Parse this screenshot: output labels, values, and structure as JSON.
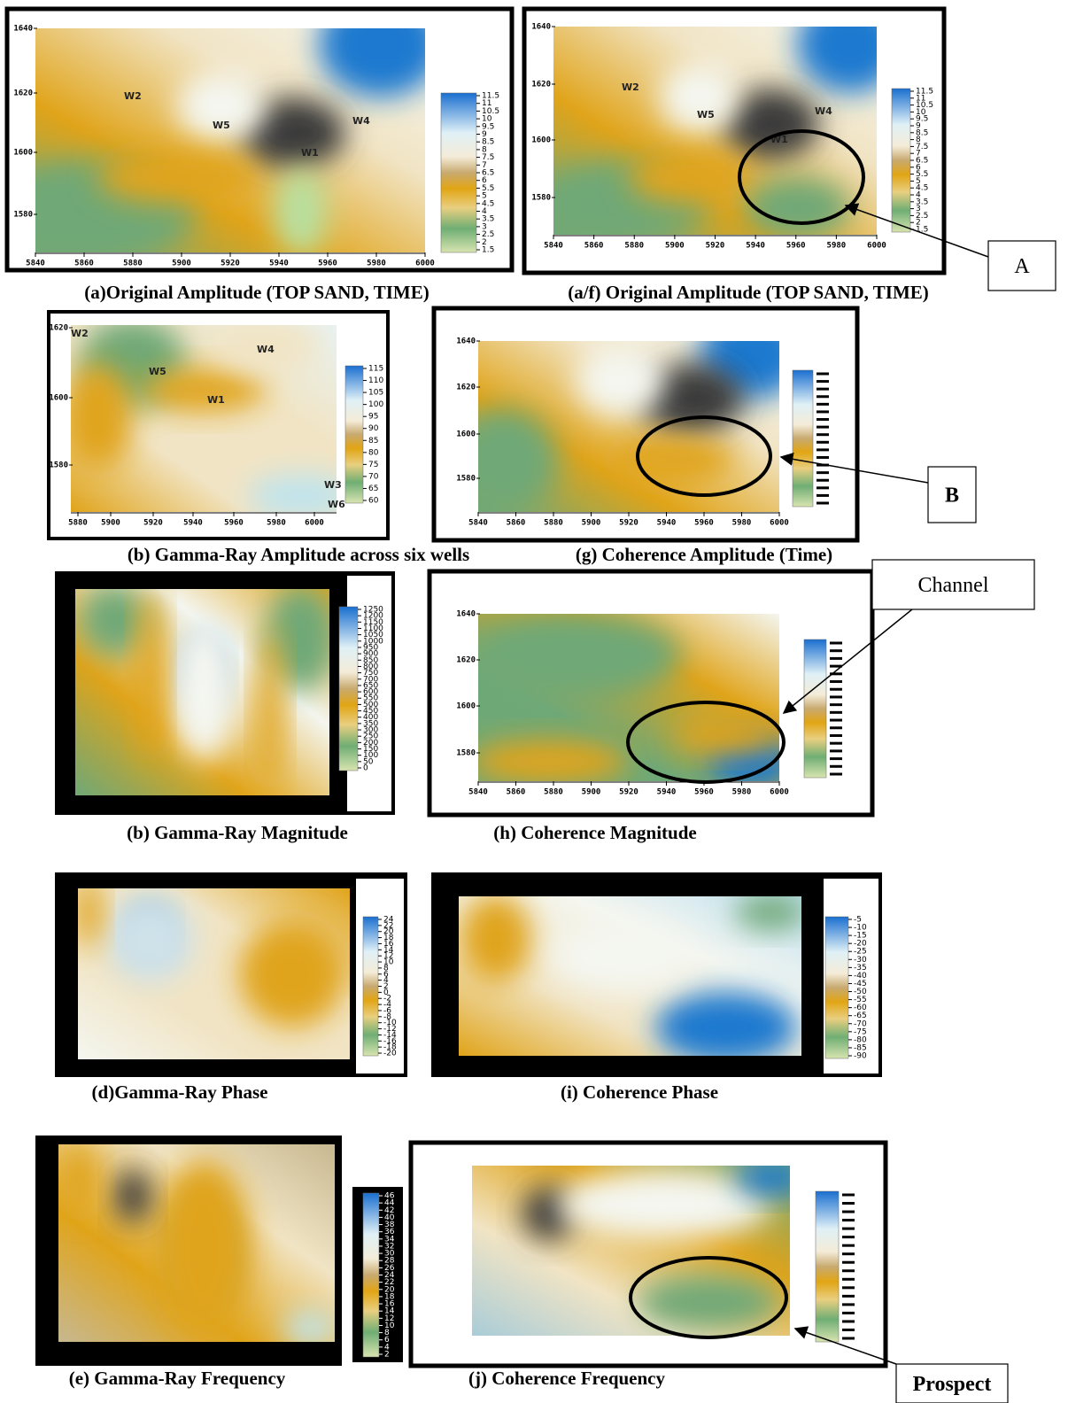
{
  "panels": [
    {
      "caption": "(a)Original Amplitude (TOP SAND, TIME)",
      "y_ticks": [
        1640,
        1620,
        1600,
        1580
      ],
      "x_ticks": [
        5840,
        5860,
        5880,
        5900,
        5920,
        5940,
        5960,
        5980,
        6000
      ],
      "colorbar_ticks": [
        11.5,
        11,
        10.5,
        10,
        9.5,
        9,
        8.5,
        8,
        7.5,
        7,
        6.5,
        6,
        5.5,
        5,
        4.5,
        4,
        3.5,
        3,
        2.5,
        2,
        1.5
      ],
      "wells": [
        "W2",
        "W5",
        "W4",
        "W1"
      ]
    },
    {
      "caption": "(a/f) Original Amplitude (TOP SAND, TIME)",
      "y_ticks": [
        1640,
        1620,
        1600,
        1580
      ],
      "x_ticks": [
        5840,
        5860,
        5880,
        5900,
        5920,
        5940,
        5960,
        5980,
        6000
      ],
      "colorbar_ticks": [
        11.5,
        11,
        10.5,
        10,
        9.5,
        9,
        8.5,
        8,
        7.5,
        7,
        6.5,
        6,
        5.5,
        5,
        4.5,
        4,
        3.5,
        3,
        2.5,
        2,
        1.5
      ],
      "wells": [
        "W2",
        "W5",
        "W4",
        "W1"
      ],
      "callout": "A"
    },
    {
      "caption": "(b) Gamma-Ray Amplitude across six wells",
      "y_ticks": [
        1620,
        1600,
        1580
      ],
      "x_ticks": [
        5880,
        5900,
        5920,
        5940,
        5960,
        5980,
        6000
      ],
      "colorbar_ticks": [
        115,
        110,
        105,
        100,
        95,
        90,
        85,
        80,
        75,
        70,
        65,
        60
      ],
      "wells": [
        "W2",
        "W5",
        "W4",
        "W1",
        "W3",
        "W6"
      ]
    },
    {
      "caption": "(g) Coherence Amplitude (Time)",
      "y_ticks": [
        1640,
        1620,
        1600,
        1580
      ],
      "x_ticks": [
        5840,
        5860,
        5880,
        5900,
        5920,
        5940,
        5960,
        5980,
        6000
      ],
      "callout": "B"
    },
    {
      "caption": "(b) Gamma-Ray Magnitude",
      "colorbar_ticks": [
        1250,
        1200,
        1150,
        1100,
        1050,
        1000,
        950,
        900,
        850,
        800,
        750,
        700,
        650,
        600,
        550,
        500,
        450,
        400,
        350,
        300,
        250,
        200,
        150,
        100,
        50,
        0
      ]
    },
    {
      "caption": "(h) Coherence Magnitude",
      "y_ticks": [
        1640,
        1620,
        1600,
        1580
      ],
      "x_ticks": [
        5840,
        5860,
        5880,
        5900,
        5920,
        5940,
        5960,
        5980,
        6000
      ],
      "callout": "Channel"
    },
    {
      "caption": "(d)Gamma-Ray Phase",
      "colorbar_ticks": [
        24,
        22,
        20,
        18,
        16,
        14,
        12,
        10,
        8,
        6,
        4,
        2,
        0,
        -2,
        -4,
        -6,
        -8,
        -10,
        -12,
        -14,
        -16,
        -18,
        -20
      ]
    },
    {
      "caption": "(i) Coherence Phase",
      "colorbar_ticks": [
        -5,
        -10,
        -15,
        -20,
        -25,
        -30,
        -35,
        -40,
        -45,
        -50,
        -55,
        -60,
        -65,
        -70,
        -75,
        -80,
        -85,
        -90
      ]
    },
    {
      "caption": "(e) Gamma-Ray Frequency",
      "colorbar_ticks": [
        46,
        44,
        42,
        40,
        38,
        36,
        34,
        32,
        30,
        28,
        26,
        24,
        22,
        20,
        18,
        16,
        14,
        12,
        10,
        8,
        6,
        4,
        2
      ]
    },
    {
      "caption": "(j) Coherence Frequency",
      "callout": "Prospect"
    }
  ]
}
